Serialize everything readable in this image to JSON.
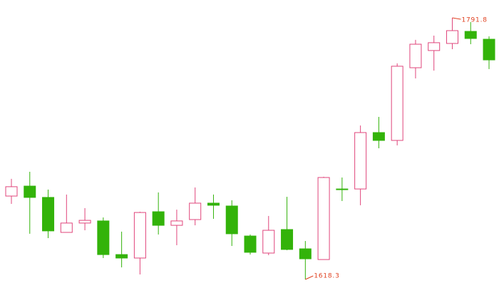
{
  "chart_data": {
    "type": "candlestick",
    "open": [
      1673.6,
      1680.2,
      1672.7,
      1649.5,
      1655.7,
      1657.1,
      1634.8,
      1632.5,
      1663.2,
      1654.2,
      1658.0,
      1668.9,
      1667.0,
      1647.1,
      1635.8,
      1651.4,
      1638.6,
      1631.5,
      1678.3,
      1678.3,
      1715.7,
      1710.5,
      1758.7,
      1770.1,
      1774.8,
      1782.8,
      1777.6
    ],
    "high": [
      1685.0,
      1689.7,
      1677.9,
      1674.6,
      1665.6,
      1659.4,
      1650.0,
      1663.2,
      1676.0,
      1664.6,
      1679.3,
      1674.6,
      1670.8,
      1648.1,
      1660.4,
      1673.1,
      1643.8,
      1686.4,
      1685.9,
      1720.4,
      1726.1,
      1761.6,
      1777.2,
      1780.0,
      1791.8,
      1789.0,
      1779.5
    ],
    "low": [
      1668.4,
      1648.6,
      1645.7,
      1649.5,
      1650.9,
      1632.5,
      1626.3,
      1621.6,
      1648.1,
      1641.0,
      1654.2,
      1658.5,
      1640.5,
      1634.8,
      1634.4,
      1637.7,
      1618.3,
      1631.5,
      1670.3,
      1667.5,
      1705.3,
      1707.2,
      1751.6,
      1756.8,
      1771.0,
      1774.3,
      1757.8
    ],
    "close": [
      1679.8,
      1672.7,
      1650.5,
      1655.7,
      1657.5,
      1634.8,
      1632.5,
      1662.7,
      1654.2,
      1657.1,
      1668.9,
      1667.5,
      1648.6,
      1636.3,
      1650.9,
      1638.2,
      1632.0,
      1685.9,
      1678.3,
      1715.7,
      1710.5,
      1759.7,
      1774.3,
      1775.3,
      1783.3,
      1778.1,
      1763.9
    ],
    "up_color": "#e0457b",
    "down_color": "#33b30a",
    "note_color": "#e0401f"
  }
}
